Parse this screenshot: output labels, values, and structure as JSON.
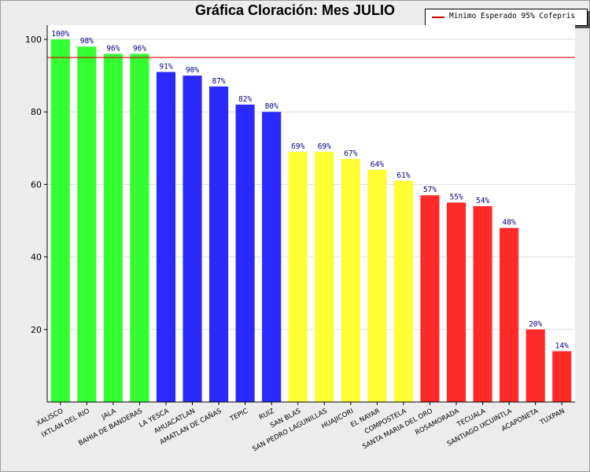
{
  "chart_data": {
    "type": "bar",
    "title": "Gráfica Cloración: Mes JULIO",
    "legend": {
      "label": "Minimo Esperado 95% Cofepris",
      "color": "#d40000",
      "placement": "top-right"
    },
    "reference_line": {
      "value": 95,
      "color": "#d40000"
    },
    "ylim": [
      0,
      100
    ],
    "yticks": [
      20,
      40,
      60,
      80,
      100
    ],
    "grid": true,
    "categories": [
      "XALISCO",
      "IXTLAN DEL RIO",
      "JALA",
      "BAHIA DE BANDERAS",
      "LA YESCA",
      "AHUACATLAN",
      "AMATLAN DE CAÑAS",
      "TEPIC",
      "RUIZ",
      "SAN BLAS",
      "SAN PEDRO LAGUNILLAS",
      "HUAJICORI",
      "EL NAYAR",
      "COMPOSTELA",
      "SANTA MARIA DEL ORO",
      "ROSAMORADA",
      "TECUALA",
      "SANTIAGO IXCUINTLA",
      "ACAPONETA",
      "TUXPAN"
    ],
    "values": [
      100,
      98,
      96,
      96,
      91,
      90,
      87,
      82,
      80,
      69,
      69,
      67,
      64,
      61,
      57,
      55,
      54,
      48,
      20,
      14
    ],
    "value_labels": [
      "100%",
      "98%",
      "96%",
      "96%",
      "91%",
      "90%",
      "87%",
      "82%",
      "80%",
      "69%",
      "69%",
      "67%",
      "64%",
      "61%",
      "57%",
      "55%",
      "54%",
      "48%",
      "20%",
      "14%"
    ],
    "bar_colors": [
      "#33ff33",
      "#33ff33",
      "#33ff33",
      "#33ff33",
      "#2a2aff",
      "#2a2aff",
      "#2a2aff",
      "#2a2aff",
      "#2a2aff",
      "#ffff33",
      "#ffff33",
      "#ffff33",
      "#ffff33",
      "#ffff33",
      "#ff2a2a",
      "#ff2a2a",
      "#ff2a2a",
      "#ff2a2a",
      "#ff2a2a",
      "#ff2a2a"
    ],
    "label_color": "#000080"
  }
}
